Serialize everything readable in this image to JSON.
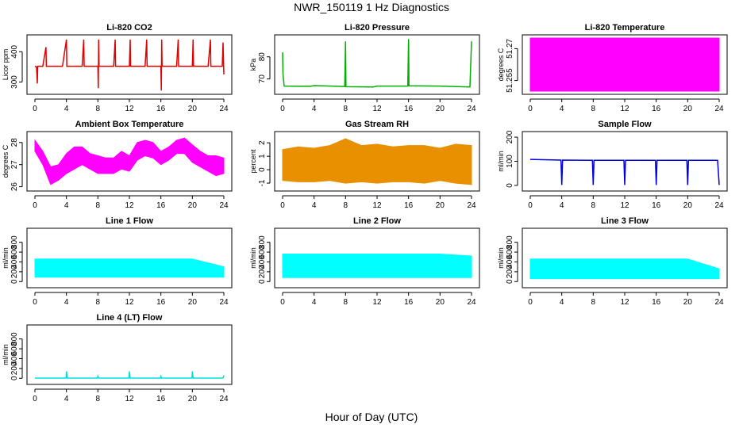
{
  "page": {
    "title": "NWR_150119  1 Hz Diagnostics",
    "xlabel": "Hour of Day (UTC)"
  },
  "chart_data": [
    {
      "type": "line",
      "title": "Li-820 CO2",
      "ylabel": "Licor ppm",
      "color": "#e00000",
      "xlim": [
        0,
        24
      ],
      "xticks": [
        0,
        4,
        8,
        12,
        16,
        20,
        24
      ],
      "ylim": [
        270,
        445
      ],
      "yticks": [
        300,
        400
      ],
      "series": [
        {
          "values": [
            {
              "x": 0,
              "y": 352
            },
            {
              "x": 0.2,
              "y": 350
            },
            {
              "x": 0.3,
              "y": 295
            },
            {
              "x": 0.35,
              "y": 352
            },
            {
              "x": 1.0,
              "y": 352
            },
            {
              "x": 1.4,
              "y": 415
            },
            {
              "x": 1.45,
              "y": 352
            },
            {
              "x": 3.5,
              "y": 352
            },
            {
              "x": 4.0,
              "y": 440
            },
            {
              "x": 4.05,
              "y": 352
            },
            {
              "x": 6.0,
              "y": 352
            },
            {
              "x": 6.2,
              "y": 440
            },
            {
              "x": 6.25,
              "y": 352
            },
            {
              "x": 8.0,
              "y": 352
            },
            {
              "x": 8.05,
              "y": 280
            },
            {
              "x": 8.1,
              "y": 440
            },
            {
              "x": 8.15,
              "y": 352
            },
            {
              "x": 10.0,
              "y": 352
            },
            {
              "x": 10.2,
              "y": 440
            },
            {
              "x": 10.25,
              "y": 352
            },
            {
              "x": 12.0,
              "y": 352
            },
            {
              "x": 12.1,
              "y": 440
            },
            {
              "x": 12.15,
              "y": 352
            },
            {
              "x": 14.0,
              "y": 352
            },
            {
              "x": 14.2,
              "y": 440
            },
            {
              "x": 14.25,
              "y": 352
            },
            {
              "x": 16.0,
              "y": 352
            },
            {
              "x": 16.05,
              "y": 272
            },
            {
              "x": 16.1,
              "y": 440
            },
            {
              "x": 16.15,
              "y": 352
            },
            {
              "x": 18.0,
              "y": 352
            },
            {
              "x": 18.2,
              "y": 440
            },
            {
              "x": 18.25,
              "y": 352
            },
            {
              "x": 20.0,
              "y": 352
            },
            {
              "x": 20.1,
              "y": 440
            },
            {
              "x": 20.15,
              "y": 352
            },
            {
              "x": 22.0,
              "y": 352
            },
            {
              "x": 22.3,
              "y": 440
            },
            {
              "x": 22.35,
              "y": 352
            },
            {
              "x": 23.8,
              "y": 352
            },
            {
              "x": 23.9,
              "y": 430
            },
            {
              "x": 24.0,
              "y": 325
            }
          ]
        }
      ]
    },
    {
      "type": "line",
      "title": "Li-820 Pressure",
      "ylabel": "kPa",
      "color": "#00b000",
      "xlim": [
        0,
        24
      ],
      "xticks": [
        0,
        4,
        8,
        12,
        16,
        20,
        24
      ],
      "ylim": [
        64.5,
        88.5
      ],
      "yticks": [
        70,
        80
      ],
      "series": [
        {
          "values": [
            {
              "x": 0,
              "y": 82
            },
            {
              "x": 0.05,
              "y": 72
            },
            {
              "x": 0.2,
              "y": 66.8
            },
            {
              "x": 3.5,
              "y": 66.7
            },
            {
              "x": 4.0,
              "y": 67.0
            },
            {
              "x": 7.9,
              "y": 66.6
            },
            {
              "x": 8.0,
              "y": 87
            },
            {
              "x": 8.05,
              "y": 66.5
            },
            {
              "x": 11.5,
              "y": 66.4
            },
            {
              "x": 12.0,
              "y": 66.8
            },
            {
              "x": 15.9,
              "y": 66.8
            },
            {
              "x": 16.0,
              "y": 88
            },
            {
              "x": 16.05,
              "y": 66.9
            },
            {
              "x": 20.0,
              "y": 66.8
            },
            {
              "x": 23.8,
              "y": 66.4
            },
            {
              "x": 24.0,
              "y": 87
            }
          ]
        }
      ]
    },
    {
      "type": "area",
      "title": "Li-820 Temperature",
      "ylabel": "degrees C",
      "color": "#ff00ff",
      "xlim": [
        0,
        24
      ],
      "xticks": [
        0,
        4,
        8,
        12,
        16,
        20,
        24
      ],
      "ylim": [
        51.25,
        51.275
      ],
      "yticks": [
        51.255,
        51.27
      ],
      "series": [
        {
          "values": [
            {
              "x": 0,
              "low": 51.25,
              "high": 51.275
            },
            {
              "x": 4,
              "low": 51.25,
              "high": 51.275
            },
            {
              "x": 8,
              "low": 51.25,
              "high": 51.275
            },
            {
              "x": 12,
              "low": 51.25,
              "high": 51.275
            },
            {
              "x": 16,
              "low": 51.25,
              "high": 51.275
            },
            {
              "x": 20,
              "low": 51.25,
              "high": 51.275
            },
            {
              "x": 24,
              "low": 51.25,
              "high": 51.275
            }
          ]
        }
      ]
    },
    {
      "type": "area",
      "title": "Ambient Box Temperature",
      "ylabel": "degrees C",
      "color": "#ff00ff",
      "xlim": [
        0,
        24
      ],
      "xticks": [
        0,
        4,
        8,
        12,
        16,
        20,
        24
      ],
      "ylim": [
        25.95,
        28.35
      ],
      "yticks": [
        26.0,
        27.0,
        28.0
      ],
      "series": [
        {
          "values": [
            {
              "x": 0,
              "low": 27.6,
              "high": 28.1
            },
            {
              "x": 1,
              "low": 27.0,
              "high": 27.6
            },
            {
              "x": 2,
              "low": 26.1,
              "high": 26.9
            },
            {
              "x": 3,
              "low": 26.3,
              "high": 27.0
            },
            {
              "x": 4,
              "low": 26.6,
              "high": 27.5
            },
            {
              "x": 5,
              "low": 26.8,
              "high": 27.8
            },
            {
              "x": 6,
              "low": 27.0,
              "high": 27.8
            },
            {
              "x": 7,
              "low": 26.8,
              "high": 27.5
            },
            {
              "x": 8,
              "low": 26.6,
              "high": 27.4
            },
            {
              "x": 9,
              "low": 26.6,
              "high": 27.3
            },
            {
              "x": 10,
              "low": 26.6,
              "high": 27.3
            },
            {
              "x": 11,
              "low": 26.8,
              "high": 27.6
            },
            {
              "x": 12,
              "low": 26.7,
              "high": 27.4
            },
            {
              "x": 13,
              "low": 27.2,
              "high": 28.0
            },
            {
              "x": 14,
              "low": 27.4,
              "high": 28.1
            },
            {
              "x": 15,
              "low": 27.3,
              "high": 28.0
            },
            {
              "x": 16,
              "low": 27.0,
              "high": 27.6
            },
            {
              "x": 17,
              "low": 27.2,
              "high": 27.8
            },
            {
              "x": 18,
              "low": 27.5,
              "high": 28.1
            },
            {
              "x": 19,
              "low": 27.5,
              "high": 28.2
            },
            {
              "x": 20,
              "low": 27.1,
              "high": 27.9
            },
            {
              "x": 21,
              "low": 26.9,
              "high": 27.6
            },
            {
              "x": 22,
              "low": 26.7,
              "high": 27.4
            },
            {
              "x": 23,
              "low": 26.5,
              "high": 27.4
            },
            {
              "x": 24,
              "low": 26.6,
              "high": 27.3
            }
          ]
        }
      ]
    },
    {
      "type": "area",
      "title": "Gas Stream RH",
      "ylabel": "percent",
      "color": "#e89000",
      "xlim": [
        0,
        24
      ],
      "xticks": [
        0,
        4,
        8,
        12,
        16,
        20,
        24
      ],
      "ylim": [
        -1.35,
        2.6
      ],
      "yticks": [
        -1,
        0,
        1,
        2
      ],
      "series": [
        {
          "values": [
            {
              "x": 0,
              "low": -0.8,
              "high": 1.5
            },
            {
              "x": 2,
              "low": -0.9,
              "high": 1.7
            },
            {
              "x": 4,
              "low": -0.9,
              "high": 1.6
            },
            {
              "x": 6,
              "low": -0.8,
              "high": 1.8
            },
            {
              "x": 8,
              "low": -1.0,
              "high": 2.3
            },
            {
              "x": 10,
              "low": -0.9,
              "high": 1.8
            },
            {
              "x": 12,
              "low": -1.0,
              "high": 1.9
            },
            {
              "x": 14,
              "low": -0.9,
              "high": 1.7
            },
            {
              "x": 16,
              "low": -0.9,
              "high": 1.8
            },
            {
              "x": 18,
              "low": -1.0,
              "high": 1.8
            },
            {
              "x": 20,
              "low": -0.8,
              "high": 1.6
            },
            {
              "x": 22,
              "low": -1.0,
              "high": 1.9
            },
            {
              "x": 24,
              "low": -1.1,
              "high": 1.8
            }
          ]
        }
      ]
    },
    {
      "type": "line",
      "title": "Sample Flow",
      "ylabel": "ml/min",
      "color": "#0000e0",
      "xlim": [
        0,
        24
      ],
      "xticks": [
        0,
        4,
        8,
        12,
        16,
        20,
        24
      ],
      "ylim": [
        -10,
        210
      ],
      "yticks": [
        0,
        100,
        200
      ],
      "series": [
        {
          "values": [
            {
              "x": 0,
              "y": 108
            },
            {
              "x": 3.9,
              "y": 105
            },
            {
              "x": 4.0,
              "y": 2
            },
            {
              "x": 4.1,
              "y": 105
            },
            {
              "x": 7.9,
              "y": 104
            },
            {
              "x": 8.0,
              "y": 2
            },
            {
              "x": 8.1,
              "y": 104
            },
            {
              "x": 11.9,
              "y": 104
            },
            {
              "x": 12.0,
              "y": 2
            },
            {
              "x": 12.1,
              "y": 104
            },
            {
              "x": 15.9,
              "y": 104
            },
            {
              "x": 16.0,
              "y": 2
            },
            {
              "x": 16.1,
              "y": 104
            },
            {
              "x": 19.9,
              "y": 104
            },
            {
              "x": 20.0,
              "y": 2
            },
            {
              "x": 20.1,
              "y": 104
            },
            {
              "x": 23.8,
              "y": 104
            },
            {
              "x": 24.0,
              "y": 2
            }
          ]
        }
      ]
    },
    {
      "type": "area",
      "title": "Line 1 Flow",
      "ylabel": "ml/min",
      "color": "#00ffff",
      "xlim": [
        0,
        24
      ],
      "xticks": [
        0,
        4,
        8,
        12,
        16,
        20,
        24
      ],
      "ylim": [
        -60,
        1020
      ],
      "yticks": [
        0,
        200,
        400,
        600,
        800
      ],
      "series": [
        {
          "values": [
            {
              "x": 0,
              "low": 90,
              "high": 460
            },
            {
              "x": 4,
              "low": 90,
              "high": 460
            },
            {
              "x": 8,
              "low": 90,
              "high": 460
            },
            {
              "x": 12,
              "low": 90,
              "high": 460
            },
            {
              "x": 16,
              "low": 90,
              "high": 460
            },
            {
              "x": 20,
              "low": 90,
              "high": 460
            },
            {
              "x": 24,
              "low": 90,
              "high": 300
            }
          ]
        }
      ]
    },
    {
      "type": "area",
      "title": "Line 2 Flow",
      "ylabel": "ml/min",
      "color": "#00ffff",
      "xlim": [
        0,
        24
      ],
      "xticks": [
        0,
        4,
        8,
        12,
        16,
        20,
        24
      ],
      "ylim": [
        -60,
        1020
      ],
      "yticks": [
        0,
        200,
        400,
        600,
        800
      ],
      "series": [
        {
          "values": [
            {
              "x": 0,
              "low": 80,
              "high": 560
            },
            {
              "x": 4,
              "low": 80,
              "high": 560
            },
            {
              "x": 8,
              "low": 80,
              "high": 560
            },
            {
              "x": 12,
              "low": 80,
              "high": 560
            },
            {
              "x": 16,
              "low": 80,
              "high": 560
            },
            {
              "x": 20,
              "low": 80,
              "high": 560
            },
            {
              "x": 24,
              "low": 80,
              "high": 520
            }
          ]
        }
      ]
    },
    {
      "type": "area",
      "title": "Line 3 Flow",
      "ylabel": "ml/min",
      "color": "#00ffff",
      "xlim": [
        0,
        24
      ],
      "xticks": [
        0,
        4,
        8,
        12,
        16,
        20,
        24
      ],
      "ylim": [
        -60,
        1020
      ],
      "yticks": [
        0,
        200,
        400,
        600,
        800
      ],
      "series": [
        {
          "values": [
            {
              "x": 0,
              "low": 60,
              "high": 460
            },
            {
              "x": 4,
              "low": 60,
              "high": 460
            },
            {
              "x": 8,
              "low": 60,
              "high": 460
            },
            {
              "x": 12,
              "low": 60,
              "high": 460
            },
            {
              "x": 16,
              "low": 60,
              "high": 460
            },
            {
              "x": 20,
              "low": 60,
              "high": 460
            },
            {
              "x": 24,
              "low": 60,
              "high": 260
            }
          ]
        }
      ]
    },
    {
      "type": "line",
      "title": "Line 4 (LT) Flow",
      "ylabel": "ml/min",
      "color": "#00e0e0",
      "xlim": [
        0,
        24
      ],
      "xticks": [
        0,
        4,
        8,
        12,
        16,
        20,
        24
      ],
      "ylim": [
        -60,
        1020
      ],
      "yticks": [
        0,
        200,
        400,
        600,
        800
      ],
      "series": [
        {
          "values": [
            {
              "x": 0,
              "y": 5
            },
            {
              "x": 3.95,
              "y": 5
            },
            {
              "x": 4.0,
              "y": 140
            },
            {
              "x": 4.1,
              "y": 5
            },
            {
              "x": 7.95,
              "y": 5
            },
            {
              "x": 8.0,
              "y": 45
            },
            {
              "x": 8.1,
              "y": 5
            },
            {
              "x": 11.95,
              "y": 5
            },
            {
              "x": 12.0,
              "y": 140
            },
            {
              "x": 12.1,
              "y": 5
            },
            {
              "x": 15.95,
              "y": 5
            },
            {
              "x": 16.0,
              "y": 40
            },
            {
              "x": 16.1,
              "y": 5
            },
            {
              "x": 19.95,
              "y": 5
            },
            {
              "x": 20.0,
              "y": 140
            },
            {
              "x": 20.1,
              "y": 5
            },
            {
              "x": 23.9,
              "y": 5
            },
            {
              "x": 24.0,
              "y": 60
            }
          ]
        }
      ]
    }
  ]
}
